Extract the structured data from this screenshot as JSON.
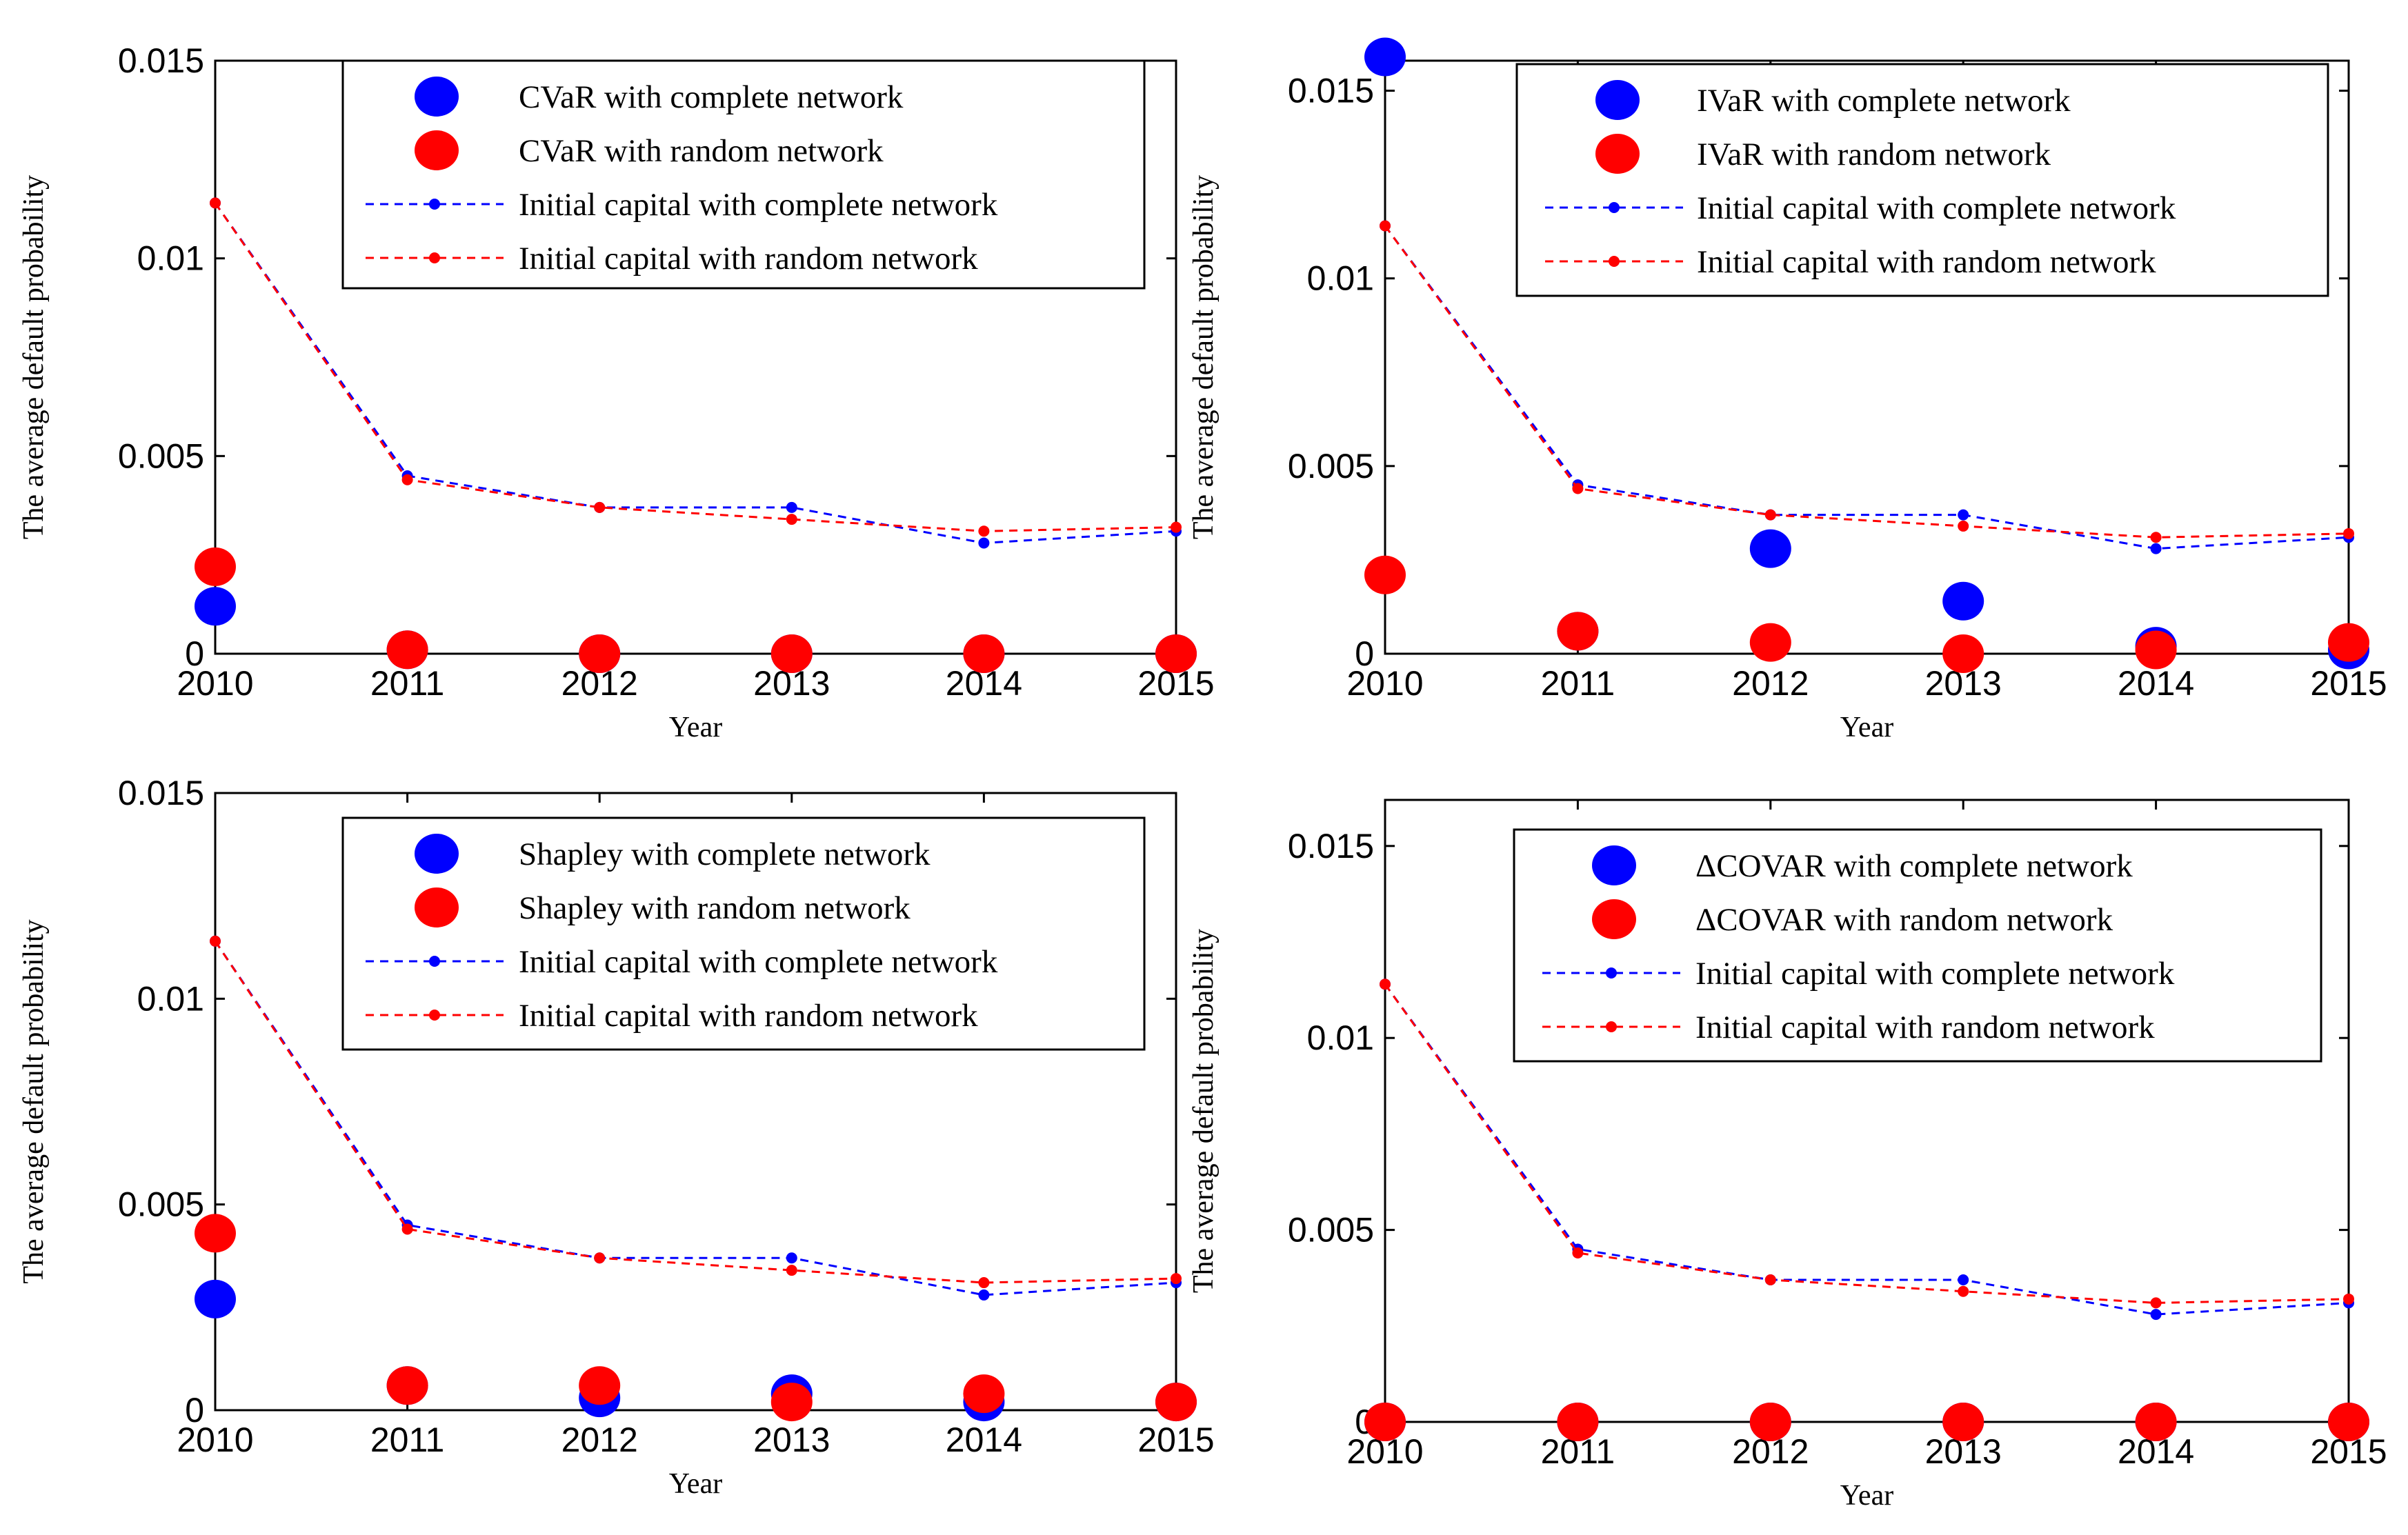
{
  "colors": {
    "complete": "#0000ff",
    "random": "#ff0000",
    "axis": "#000000"
  },
  "chart_data": [
    {
      "type": "scatter",
      "xlabel": "Year",
      "ylabel": "The average default probability",
      "x": [
        "2010",
        "2011",
        "2012",
        "2013",
        "2014",
        "2015"
      ],
      "ylim": [
        0,
        0.015
      ],
      "yticks": [
        "0",
        "0.005",
        "0.01",
        "0.015"
      ],
      "yticks_values": [
        0,
        0.005,
        0.01,
        0.015
      ],
      "series": [
        {
          "name": "CVaR with complete network",
          "kind": "marker",
          "color": "#0000ff",
          "values": [
            0.0012,
            0.0001,
            0.0,
            0.0,
            0.0,
            0.0
          ]
        },
        {
          "name": "CVaR with random network",
          "kind": "marker",
          "color": "#ff0000",
          "values": [
            0.0022,
            0.0001,
            0.0,
            0.0,
            0.0,
            0.0
          ]
        },
        {
          "name": "Initial capital with complete network",
          "kind": "line",
          "color": "#0000ff",
          "values": [
            0.0114,
            0.0045,
            0.0037,
            0.0037,
            0.0028,
            0.0031
          ]
        },
        {
          "name": "Initial capital with random network",
          "kind": "line",
          "color": "#ff0000",
          "values": [
            0.0114,
            0.0044,
            0.0037,
            0.0034,
            0.0031,
            0.0032
          ]
        }
      ]
    },
    {
      "type": "scatter",
      "xlabel": "Year",
      "ylabel": "The average default probability",
      "x": [
        "2010",
        "2011",
        "2012",
        "2013",
        "2014",
        "2015"
      ],
      "ylim": [
        0,
        0.0158
      ],
      "yticks": [
        "0",
        "0.005",
        "0.01",
        "0.015"
      ],
      "yticks_values": [
        0,
        0.005,
        0.01,
        0.015
      ],
      "series": [
        {
          "name": "IVaR with complete network",
          "kind": "marker",
          "color": "#0000ff",
          "values": [
            0.0159,
            0.0006,
            0.0028,
            0.0014,
            0.0002,
            0.0001
          ]
        },
        {
          "name": "IVaR with random network",
          "kind": "marker",
          "color": "#ff0000",
          "values": [
            0.0021,
            0.0006,
            0.0003,
            0.0,
            0.0001,
            0.0003
          ]
        },
        {
          "name": "Initial capital with complete network",
          "kind": "line",
          "color": "#0000ff",
          "values": [
            0.0114,
            0.0045,
            0.0037,
            0.0037,
            0.0028,
            0.0031
          ]
        },
        {
          "name": "Initial capital with random network",
          "kind": "line",
          "color": "#ff0000",
          "values": [
            0.0114,
            0.0044,
            0.0037,
            0.0034,
            0.0031,
            0.0032
          ]
        }
      ]
    },
    {
      "type": "scatter",
      "xlabel": "Year",
      "ylabel": "The average default probability",
      "x": [
        "2010",
        "2011",
        "2012",
        "2013",
        "2014",
        "2015"
      ],
      "ylim": [
        0,
        0.015
      ],
      "yticks": [
        "0",
        "0.005",
        "0.01",
        "0.015"
      ],
      "yticks_values": [
        0,
        0.005,
        0.01,
        0.015
      ],
      "series": [
        {
          "name": "Shapley with complete network",
          "kind": "marker",
          "color": "#0000ff",
          "values": [
            0.0027,
            0.0006,
            0.0003,
            0.0004,
            0.0002,
            0.0002
          ]
        },
        {
          "name": "Shapley with random network",
          "kind": "marker",
          "color": "#ff0000",
          "values": [
            0.0043,
            0.0006,
            0.0006,
            0.0002,
            0.0004,
            0.0002
          ]
        },
        {
          "name": "Initial capital with complete network",
          "kind": "line",
          "color": "#0000ff",
          "values": [
            0.0114,
            0.0045,
            0.0037,
            0.0037,
            0.0028,
            0.0031
          ]
        },
        {
          "name": "Initial capital with random network",
          "kind": "line",
          "color": "#ff0000",
          "values": [
            0.0114,
            0.0044,
            0.0037,
            0.0034,
            0.0031,
            0.0032
          ]
        }
      ]
    },
    {
      "type": "scatter",
      "xlabel": "Year",
      "ylabel": "The average default probability",
      "x": [
        "2010",
        "2011",
        "2012",
        "2013",
        "2014",
        "2015"
      ],
      "ylim": [
        0,
        0.0162
      ],
      "yticks": [
        "0",
        "0.005",
        "0.01",
        "0.015"
      ],
      "yticks_values": [
        0,
        0.005,
        0.01,
        0.015
      ],
      "series": [
        {
          "name": "ΔCOVAR with complete network",
          "kind": "marker",
          "color": "#0000ff",
          "values": [
            0.0,
            0.0,
            0.0,
            0.0,
            0.0,
            0.0
          ]
        },
        {
          "name": "ΔCOVAR with random network",
          "kind": "marker",
          "color": "#ff0000",
          "values": [
            0.0,
            0.0,
            0.0,
            0.0,
            0.0,
            0.0
          ]
        },
        {
          "name": "Initial capital with complete network",
          "kind": "line",
          "color": "#0000ff",
          "values": [
            0.0114,
            0.0045,
            0.0037,
            0.0037,
            0.0028,
            0.0031
          ]
        },
        {
          "name": "Initial capital with random network",
          "kind": "line",
          "color": "#ff0000",
          "values": [
            0.0114,
            0.0044,
            0.0037,
            0.0034,
            0.0031,
            0.0032
          ]
        }
      ]
    }
  ]
}
